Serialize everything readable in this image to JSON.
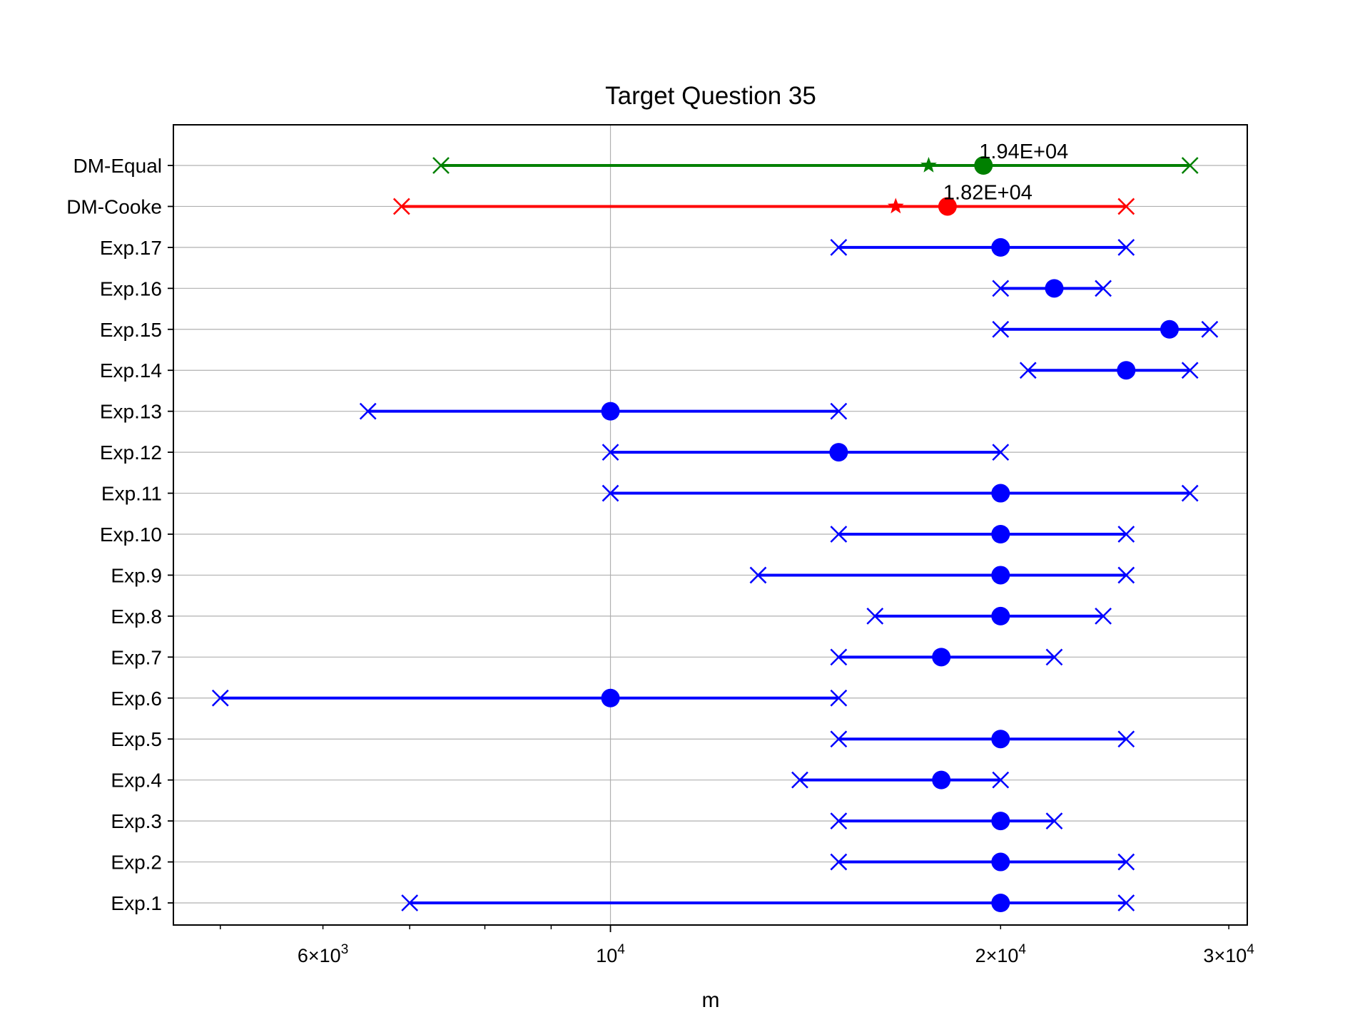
{
  "chart_data": {
    "type": "errorbar-range",
    "title": "Target Question 35",
    "xlabel": "m",
    "ylabel": "",
    "x_scale": "log",
    "xlim": [
      4600,
      31000
    ],
    "grid": true,
    "x_ticks": [
      {
        "value": 6000,
        "mantissa": "6",
        "exp": "3"
      },
      {
        "value": 10000,
        "mantissa": "",
        "exp": "4"
      },
      {
        "value": 20000,
        "mantissa": "2",
        "exp": "4"
      },
      {
        "value": 30000,
        "mantissa": "3",
        "exp": "4"
      }
    ],
    "colors": {
      "experts": "#0000ff",
      "dm_cooke": "#ff0000",
      "dm_equal": "#008000"
    },
    "rows": [
      {
        "label": "Exp.1",
        "low": 7000,
        "median": 20000,
        "high": 25000,
        "color": "#0000ff"
      },
      {
        "label": "Exp.2",
        "low": 15000,
        "median": 20000,
        "high": 25000,
        "color": "#0000ff"
      },
      {
        "label": "Exp.3",
        "low": 15000,
        "median": 20000,
        "high": 22000,
        "color": "#0000ff"
      },
      {
        "label": "Exp.4",
        "low": 14000,
        "median": 18000,
        "high": 20000,
        "color": "#0000ff"
      },
      {
        "label": "Exp.5",
        "low": 15000,
        "median": 20000,
        "high": 25000,
        "color": "#0000ff"
      },
      {
        "label": "Exp.6",
        "low": 5000,
        "median": 10000,
        "high": 15000,
        "color": "#0000ff"
      },
      {
        "label": "Exp.7",
        "low": 15000,
        "median": 18000,
        "high": 22000,
        "color": "#0000ff"
      },
      {
        "label": "Exp.8",
        "low": 16000,
        "median": 20000,
        "high": 24000,
        "color": "#0000ff"
      },
      {
        "label": "Exp.9",
        "low": 13000,
        "median": 20000,
        "high": 25000,
        "color": "#0000ff"
      },
      {
        "label": "Exp.10",
        "low": 15000,
        "median": 20000,
        "high": 25000,
        "color": "#0000ff"
      },
      {
        "label": "Exp.11",
        "low": 10000,
        "median": 20000,
        "high": 28000,
        "color": "#0000ff"
      },
      {
        "label": "Exp.12",
        "low": 10000,
        "median": 15000,
        "high": 20000,
        "color": "#0000ff"
      },
      {
        "label": "Exp.13",
        "low": 6500,
        "median": 10000,
        "high": 15000,
        "color": "#0000ff"
      },
      {
        "label": "Exp.14",
        "low": 21000,
        "median": 25000,
        "high": 28000,
        "color": "#0000ff"
      },
      {
        "label": "Exp.15",
        "low": 20000,
        "median": 27000,
        "high": 29000,
        "color": "#0000ff"
      },
      {
        "label": "Exp.16",
        "low": 20000,
        "median": 22000,
        "high": 24000,
        "color": "#0000ff"
      },
      {
        "label": "Exp.17",
        "low": 15000,
        "median": 20000,
        "high": 25000,
        "color": "#0000ff"
      },
      {
        "label": "DM-Cooke",
        "low": 6900,
        "median": 18200,
        "high": 25000,
        "star": 16600,
        "annotation": "1.82E+04",
        "color": "#ff0000"
      },
      {
        "label": "DM-Equal",
        "low": 7400,
        "median": 19400,
        "high": 28000,
        "star": 17600,
        "annotation": "1.94E+04",
        "color": "#008000"
      }
    ]
  }
}
